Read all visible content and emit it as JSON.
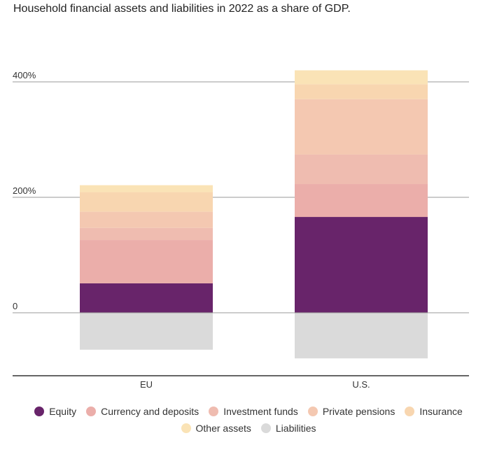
{
  "title": "Household financial assets and liabilities in 2022 as a share of GDP.",
  "chart_data": {
    "type": "bar",
    "stacked": true,
    "categories": [
      "EU",
      "U.S."
    ],
    "y_ticks": [
      {
        "value": 400,
        "label": "400%"
      },
      {
        "value": 200,
        "label": "200%"
      },
      {
        "value": 0,
        "label": "0"
      }
    ],
    "ylim": [
      -80,
      420
    ],
    "grid": true,
    "legend_position": "bottom",
    "series": [
      {
        "name": "Equity",
        "color": "#68246a",
        "values": [
          51,
          166
        ]
      },
      {
        "name": "Currency and deposits",
        "color": "#ebaeaa",
        "values": [
          75,
          57
        ]
      },
      {
        "name": "Investment funds",
        "color": "#efbcb0",
        "values": [
          21,
          51
        ]
      },
      {
        "name": "Private pensions",
        "color": "#f4c8b1",
        "values": [
          28,
          96
        ]
      },
      {
        "name": "Insurance",
        "color": "#f8d6b0",
        "values": [
          34,
          26
        ]
      },
      {
        "name": "Other assets",
        "color": "#fae3b6",
        "values": [
          12,
          24
        ]
      },
      {
        "name": "Liabilities",
        "color": "#dadada",
        "values": [
          -64,
          -79
        ]
      }
    ]
  }
}
